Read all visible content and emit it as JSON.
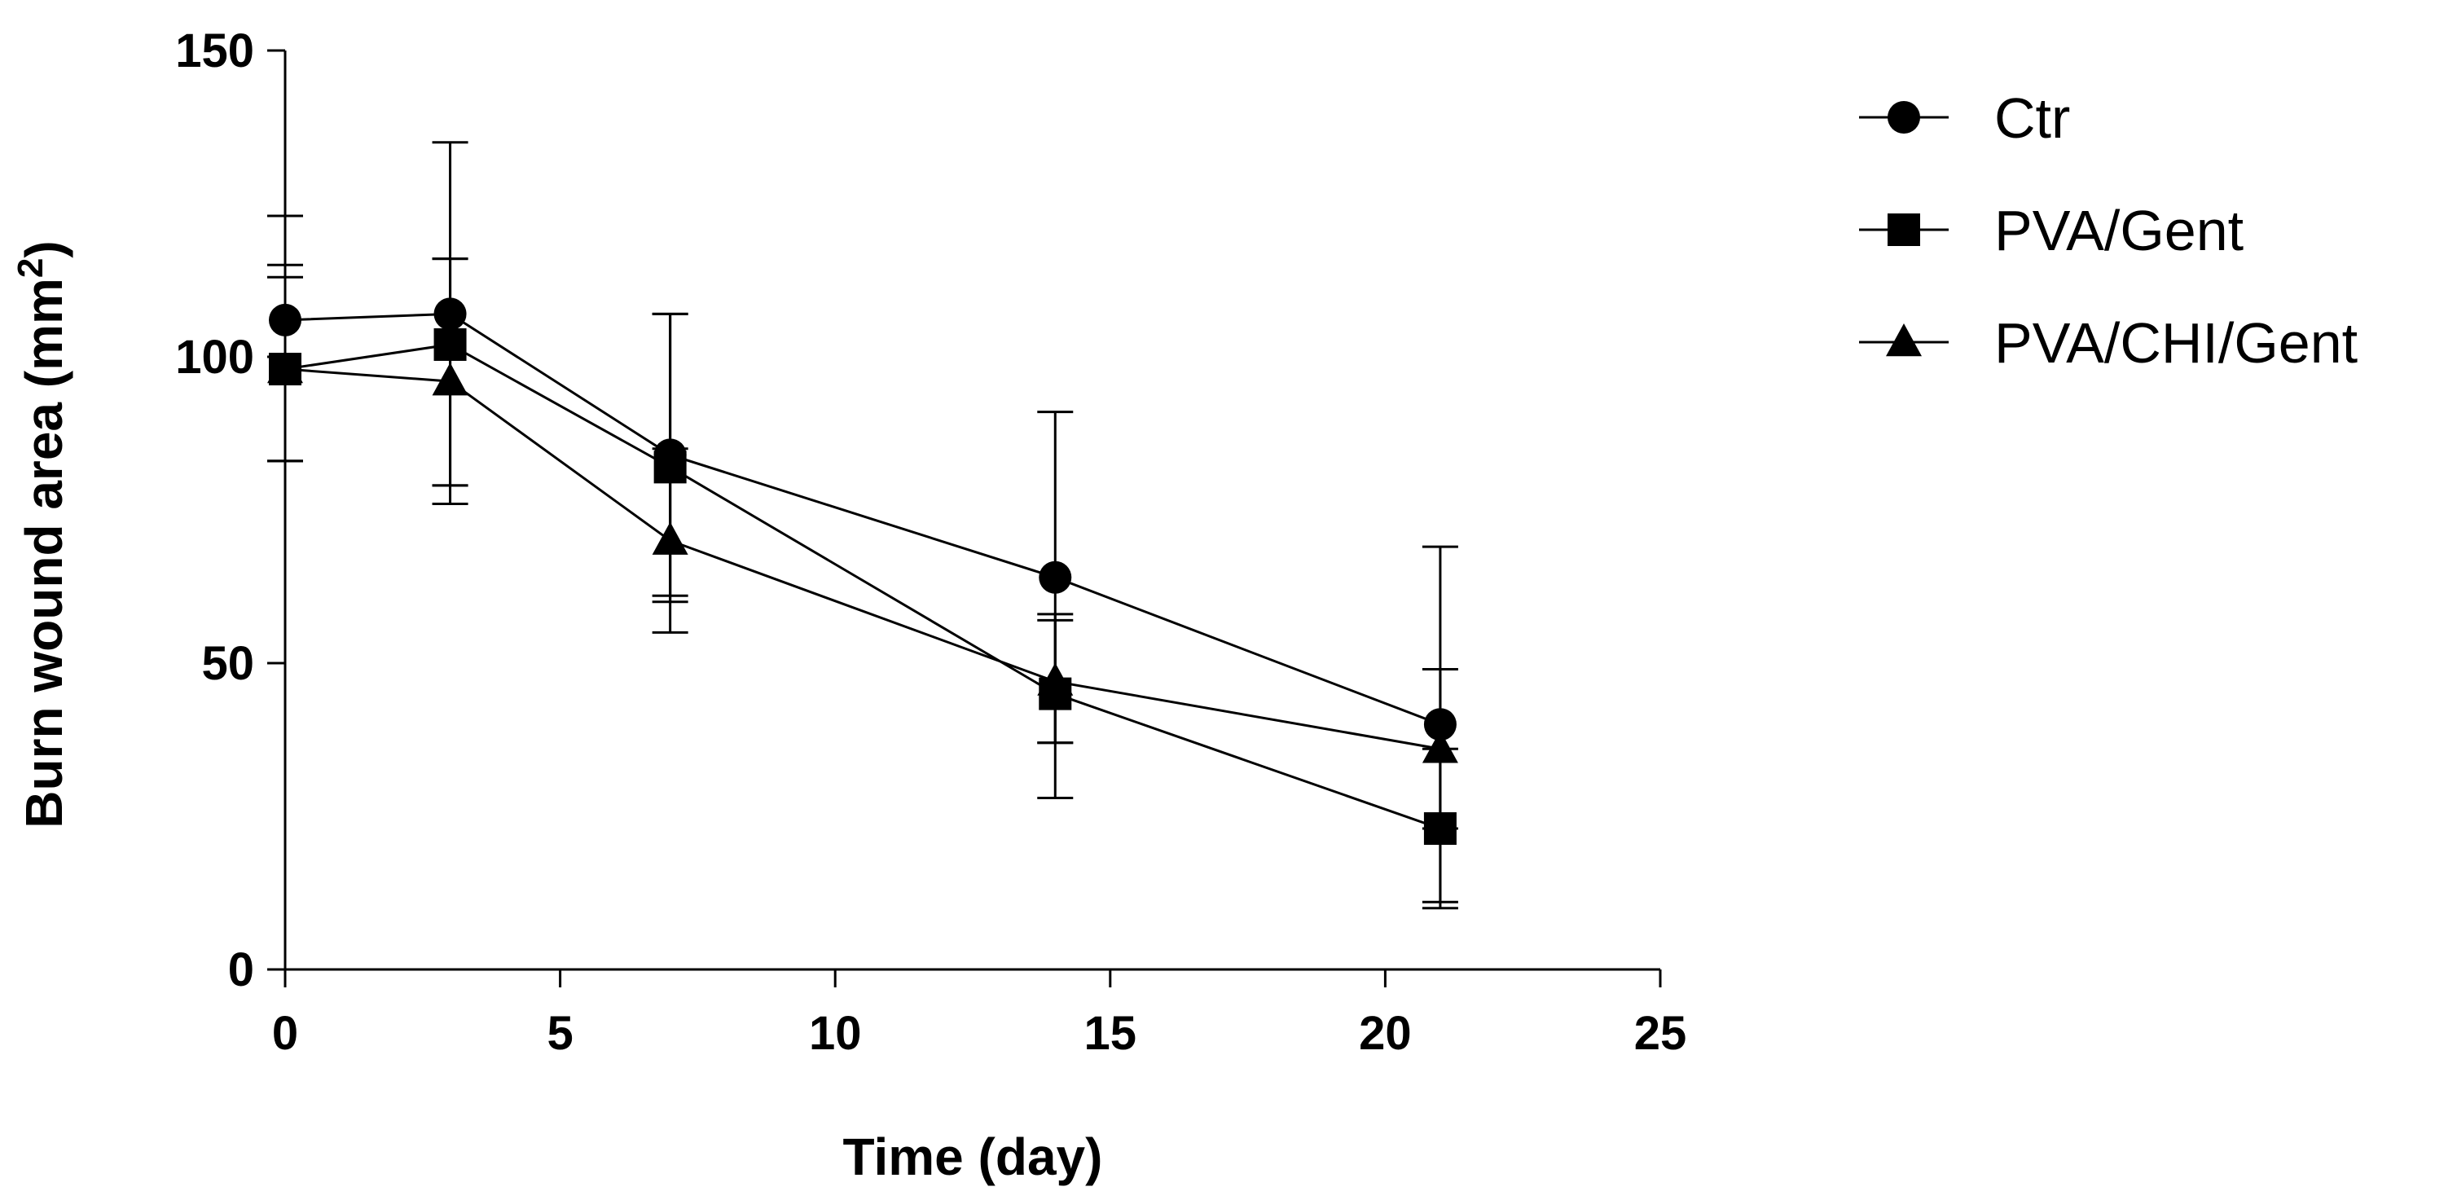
{
  "chart_data": {
    "type": "line",
    "xlabel": "Time (day)",
    "ylabel_main": "Burn wound area (mm",
    "ylabel_sup": "2",
    "ylabel_close": ")",
    "xlim": [
      0,
      25
    ],
    "ylim": [
      0,
      150
    ],
    "xticks": [
      0,
      5,
      10,
      15,
      20,
      25
    ],
    "yticks": [
      0,
      50,
      100,
      150
    ],
    "grid": false,
    "legend_position": "top-right",
    "x": [
      0,
      3,
      7,
      14,
      21
    ],
    "series": [
      {
        "name": "Ctr",
        "marker": "circle",
        "values": [
          106,
          107,
          84,
          64,
          40
        ],
        "err_plus": [
          17,
          28,
          23,
          27,
          29
        ],
        "err_minus": [
          23,
          28,
          23,
          27,
          29
        ]
      },
      {
        "name": "PVA/Gent",
        "marker": "square",
        "values": [
          98,
          102,
          82,
          45,
          23
        ],
        "err_plus": [
          17,
          14,
          25,
          13,
          13
        ],
        "err_minus": [
          15,
          23,
          22,
          17,
          13
        ]
      },
      {
        "name": "PVA/CHI/Gent",
        "marker": "triangle",
        "values": [
          98,
          96,
          70,
          47,
          36
        ],
        "err_plus": [
          15,
          20,
          15,
          10,
          13
        ],
        "err_minus": [
          15,
          20,
          15,
          10,
          13
        ]
      }
    ],
    "colors": {
      "line": "#000000",
      "marker": "#000000",
      "background": "#ffffff"
    }
  }
}
